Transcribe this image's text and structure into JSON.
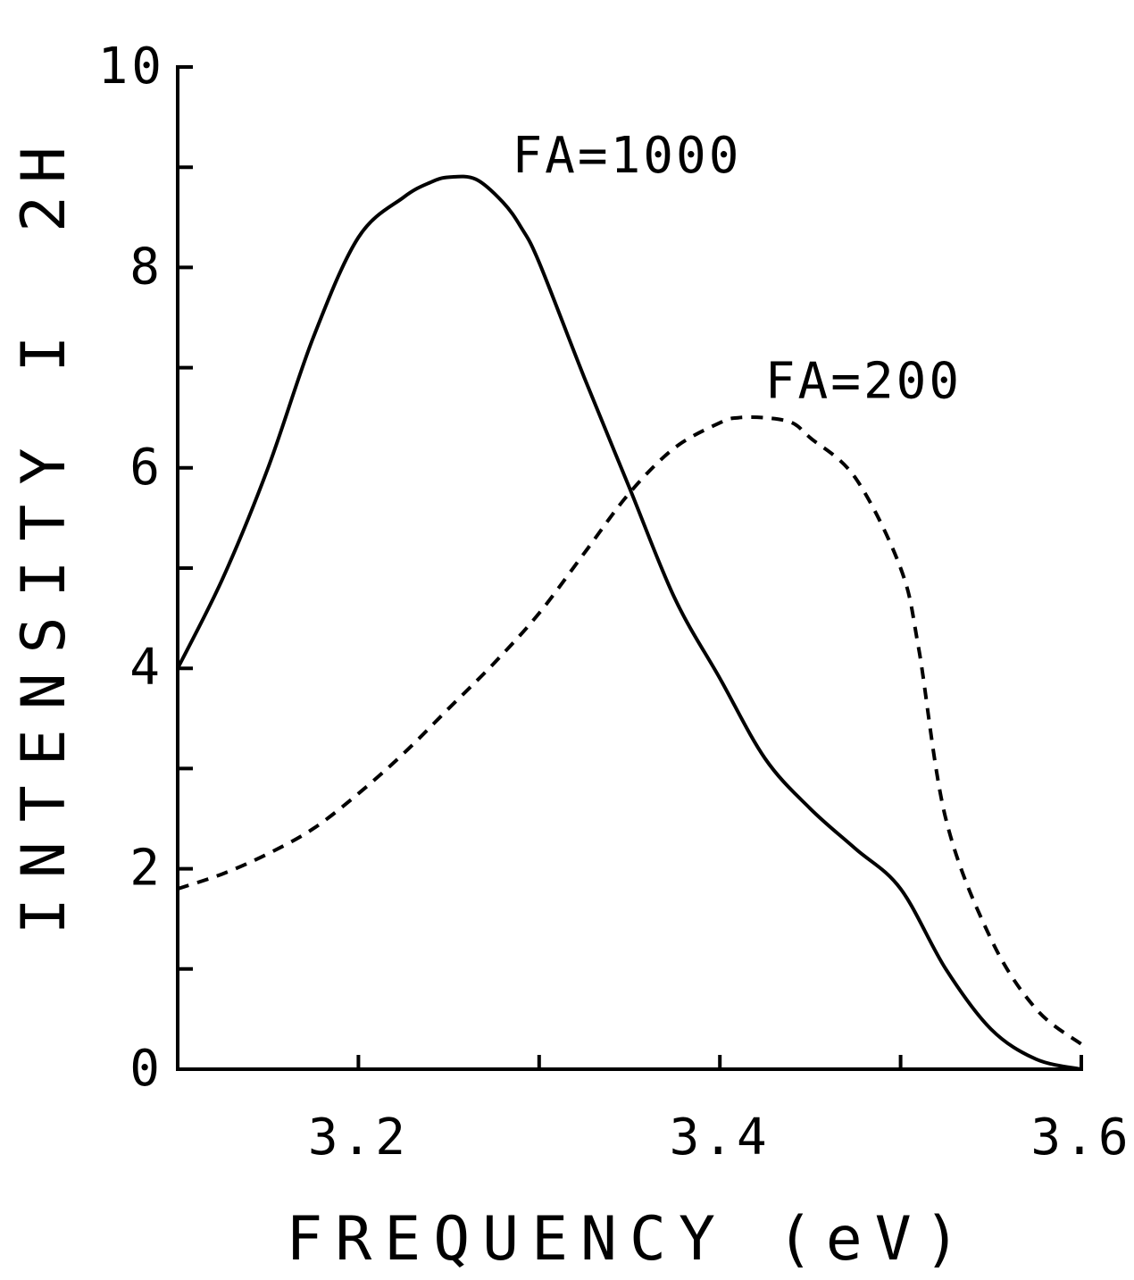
{
  "chart_data": {
    "type": "line",
    "title": "",
    "xlabel": "FREQUENCY (eV)",
    "ylabel": "INTENSITY I",
    "y_unit_marker": "2H",
    "xlim": [
      3.1,
      3.6
    ],
    "ylim": [
      0,
      10
    ],
    "x_ticks": [
      3.1,
      3.2,
      3.3,
      3.4,
      3.5,
      3.6
    ],
    "x_tick_labels": [
      {
        "value": 3.2,
        "label": "3.2"
      },
      {
        "value": 3.4,
        "label": "3.4"
      },
      {
        "value": 3.6,
        "label": "3.6"
      }
    ],
    "y_ticks": [
      0,
      1,
      2,
      3,
      4,
      5,
      6,
      7,
      8,
      9,
      10
    ],
    "y_tick_labels": [
      {
        "value": 0,
        "label": "0"
      },
      {
        "value": 2,
        "label": "2"
      },
      {
        "value": 4,
        "label": "4"
      },
      {
        "value": 6,
        "label": "6"
      },
      {
        "value": 8,
        "label": "8"
      },
      {
        "value": 10,
        "label": "10"
      }
    ],
    "grid": false,
    "series": [
      {
        "name": "FA=1000",
        "style": "solid",
        "color": "#000000",
        "x": [
          3.1,
          3.125,
          3.15,
          3.175,
          3.2,
          3.225,
          3.24,
          3.25,
          3.265,
          3.28,
          3.29,
          3.3,
          3.325,
          3.35,
          3.375,
          3.4,
          3.425,
          3.45,
          3.475,
          3.5,
          3.525,
          3.55,
          3.575,
          3.6
        ],
        "y": [
          4.0,
          4.9,
          6.0,
          7.3,
          8.3,
          8.7,
          8.85,
          8.9,
          8.88,
          8.65,
          8.4,
          8.05,
          6.9,
          5.8,
          4.7,
          3.9,
          3.1,
          2.6,
          2.2,
          1.8,
          1.0,
          0.4,
          0.1,
          0.0
        ]
      },
      {
        "name": "FA=200",
        "style": "dashed",
        "color": "#000000",
        "x": [
          3.1,
          3.125,
          3.15,
          3.175,
          3.2,
          3.225,
          3.25,
          3.275,
          3.3,
          3.325,
          3.35,
          3.375,
          3.4,
          3.41,
          3.425,
          3.44,
          3.45,
          3.475,
          3.5,
          3.51,
          3.525,
          3.55,
          3.575,
          3.6
        ],
        "y": [
          1.8,
          1.95,
          2.15,
          2.4,
          2.75,
          3.15,
          3.6,
          4.05,
          4.55,
          5.15,
          5.75,
          6.2,
          6.45,
          6.5,
          6.5,
          6.45,
          6.3,
          5.9,
          5.0,
          4.2,
          2.5,
          1.3,
          0.6,
          0.25
        ]
      }
    ],
    "annotations": [
      {
        "text": "FA=1000",
        "x": 3.285,
        "y": 8.95
      },
      {
        "text": "FA=200",
        "x": 3.425,
        "y": 6.7
      }
    ]
  }
}
